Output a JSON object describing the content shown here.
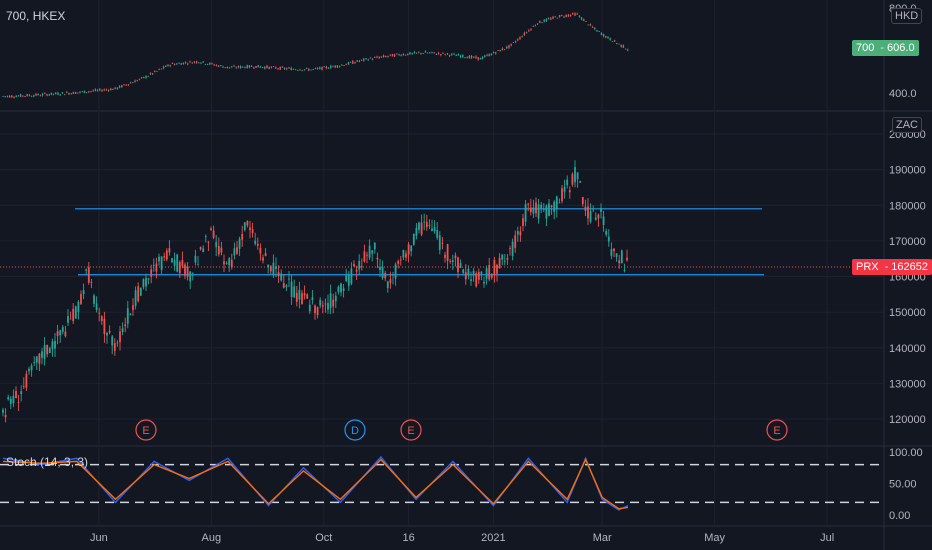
{
  "colors": {
    "background": "#131722",
    "grid": "#1e222d",
    "up": "#26a69a",
    "down": "#ef5350",
    "hline": "#2196f3",
    "stoch_k": "#2962ff",
    "stoch_d": "#ff6d00",
    "symbol_tag": "#4caf7a",
    "prx_tag": "#f23645"
  },
  "top_pane": {
    "title": "700, HKEX",
    "currency_label": "HKD",
    "price_tag": {
      "symbol": "700",
      "value": "606.0"
    },
    "y_ticks": [
      "800.0",
      "400.0"
    ]
  },
  "main_pane": {
    "currency_label": "ZAC",
    "price_tag": {
      "symbol": "PRX",
      "value": "162652"
    },
    "y_ticks": [
      "200000",
      "190000",
      "180000",
      "170000",
      "160000",
      "150000",
      "140000",
      "130000",
      "120000"
    ],
    "hlines": [
      179000,
      160500
    ],
    "events": [
      {
        "label": "E",
        "type": "earnings"
      },
      {
        "label": "D",
        "type": "dividend"
      },
      {
        "label": "E",
        "type": "earnings"
      },
      {
        "label": "E",
        "type": "earnings"
      }
    ]
  },
  "stoch_pane": {
    "title": "Stoch (14, 3, 3)",
    "y_ticks": [
      "100.00",
      "50.00",
      "0.00"
    ],
    "levels": [
      80,
      20
    ]
  },
  "x_axis": {
    "labels": [
      "Jun",
      "Aug",
      "Oct",
      "16",
      "2021",
      "Mar",
      "May",
      "Jul"
    ]
  },
  "chart_data": [
    {
      "type": "line",
      "title": "700, HKEX",
      "ylabel": "HKD",
      "ylim": [
        380,
        810
      ],
      "series": [
        {
          "name": "700",
          "x": [
            "2020-04-15",
            "2020-05-01",
            "2020-05-20",
            "2020-06-10",
            "2020-06-25",
            "2020-07-10",
            "2020-07-25",
            "2020-08-10",
            "2020-08-25",
            "2020-09-10",
            "2020-09-25",
            "2020-10-10",
            "2020-10-25",
            "2020-11-10",
            "2020-11-25",
            "2020-12-10",
            "2020-12-25",
            "2021-01-10",
            "2021-01-25",
            "2021-02-05",
            "2021-02-15",
            "2021-02-25",
            "2021-03-05",
            "2021-03-15"
          ],
          "values": [
            385,
            392,
            402,
            420,
            470,
            535,
            548,
            520,
            525,
            515,
            510,
            530,
            560,
            580,
            590,
            580,
            562,
            620,
            730,
            760,
            772,
            700,
            655,
            606
          ]
        }
      ]
    },
    {
      "type": "line",
      "title": "PRX",
      "ylabel": "ZAC",
      "ylim": [
        115000,
        202000
      ],
      "series": [
        {
          "name": "PRX",
          "x": [
            "2020-04-10",
            "2020-04-20",
            "2020-05-01",
            "2020-05-10",
            "2020-05-20",
            "2020-05-26",
            "2020-06-01",
            "2020-06-10",
            "2020-06-20",
            "2020-07-01",
            "2020-07-10",
            "2020-07-20",
            "2020-08-01",
            "2020-08-10",
            "2020-08-20",
            "2020-09-01",
            "2020-09-10",
            "2020-09-20",
            "2020-10-01",
            "2020-10-10",
            "2020-10-20",
            "2020-10-28",
            "2020-11-05",
            "2020-11-15",
            "2020-11-25",
            "2020-12-05",
            "2020-12-15",
            "2020-12-25",
            "2021-01-10",
            "2021-01-20",
            "2021-01-28",
            "2021-02-05",
            "2021-02-15",
            "2021-02-22",
            "2021-03-01",
            "2021-03-05",
            "2021-03-10",
            "2021-03-15"
          ],
          "values": [
            122000,
            128000,
            138000,
            143000,
            150000,
            162000,
            148000,
            141000,
            153000,
            162000,
            166000,
            160000,
            172000,
            162000,
            175000,
            163000,
            158000,
            153000,
            151000,
            156000,
            163000,
            168000,
            158000,
            167000,
            176000,
            168000,
            162000,
            159000,
            166000,
            180000,
            178000,
            181000,
            189000,
            176000,
            179000,
            168000,
            166000,
            162652
          ]
        }
      ]
    },
    {
      "type": "line",
      "title": "Stoch (14, 3, 3)",
      "ylim": [
        0,
        100
      ],
      "series": [
        {
          "name": "K",
          "x": [
            "2020-04-10",
            "2020-05-01",
            "2020-05-20",
            "2020-06-10",
            "2020-07-01",
            "2020-07-20",
            "2020-08-10",
            "2020-09-01",
            "2020-09-20",
            "2020-10-10",
            "2020-11-01",
            "2020-11-20",
            "2020-12-10",
            "2021-01-01",
            "2021-01-20",
            "2021-02-10",
            "2021-02-20",
            "2021-03-01",
            "2021-03-10",
            "2021-03-15"
          ],
          "values": [
            90,
            80,
            90,
            20,
            85,
            55,
            90,
            15,
            75,
            20,
            92,
            25,
            85,
            15,
            90,
            20,
            90,
            25,
            8,
            15
          ]
        },
        {
          "name": "D",
          "x": [
            "2020-04-10",
            "2020-05-01",
            "2020-05-20",
            "2020-06-10",
            "2020-07-01",
            "2020-07-20",
            "2020-08-10",
            "2020-09-01",
            "2020-09-20",
            "2020-10-10",
            "2020-11-01",
            "2020-11-20",
            "2020-12-10",
            "2021-01-01",
            "2021-01-20",
            "2021-02-10",
            "2021-02-20",
            "2021-03-01",
            "2021-03-10",
            "2021-03-15"
          ],
          "values": [
            85,
            82,
            85,
            25,
            80,
            58,
            85,
            18,
            70,
            25,
            88,
            28,
            80,
            18,
            85,
            25,
            88,
            28,
            10,
            12
          ]
        }
      ]
    }
  ]
}
